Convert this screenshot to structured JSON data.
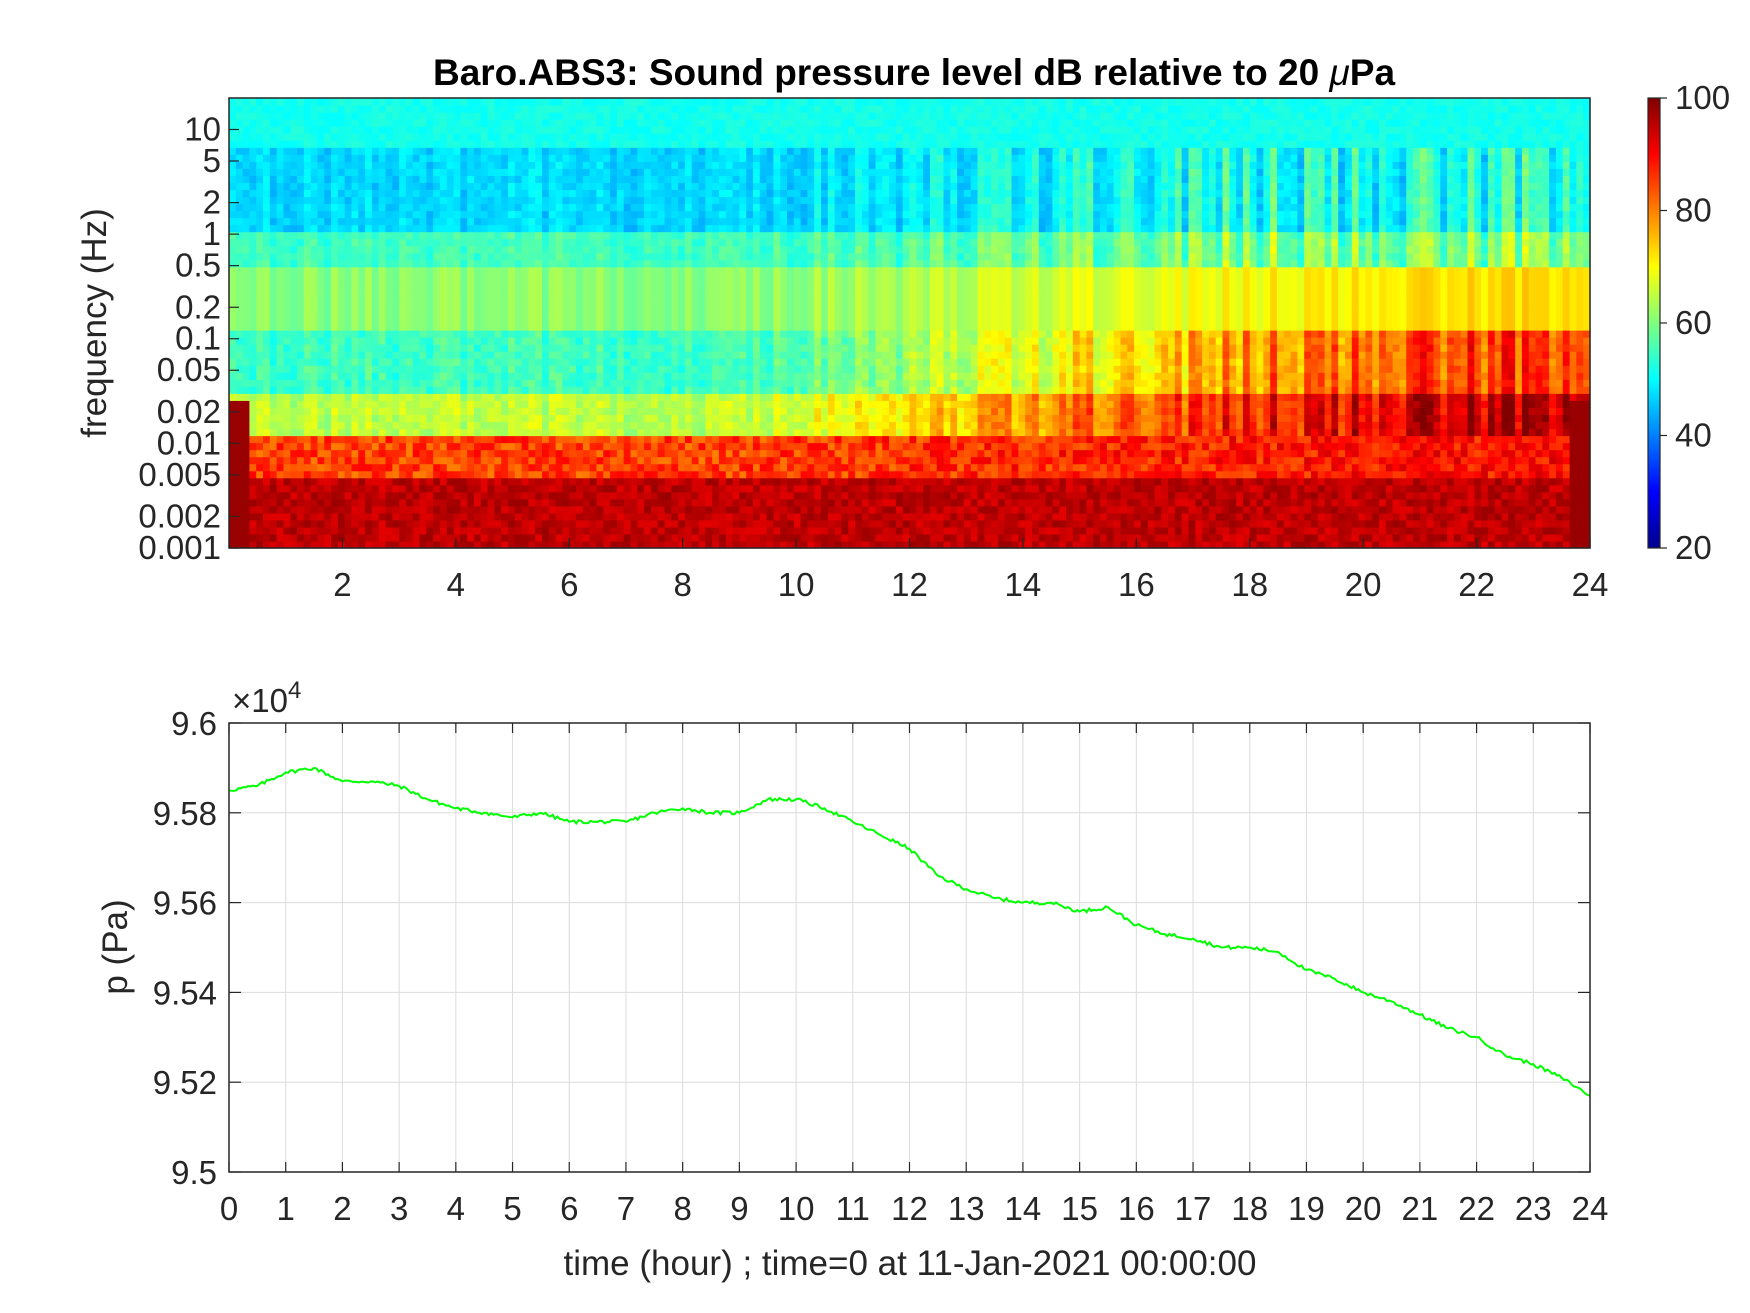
{
  "chart_data": [
    {
      "type": "heatmap",
      "title": "Baro.ABS3: Sound pressure level dB relative to 20 μPa",
      "title_parts": {
        "prefix": "Baro.ABS3: Sound pressure level dB relative to 20 ",
        "mu": "μ",
        "suffix": "Pa"
      },
      "ylabel": "frequency (Hz)",
      "xlabel": "",
      "y_scale": "log",
      "xlim": [
        0,
        24
      ],
      "ylim": [
        0.001,
        20
      ],
      "x_ticks": [
        "2",
        "4",
        "6",
        "8",
        "10",
        "12",
        "14",
        "16",
        "18",
        "20",
        "22",
        "24"
      ],
      "y_ticks": [
        "0.001",
        "0.002",
        "0.005",
        "0.01",
        "0.02",
        "0.05",
        "0.1",
        "0.2",
        "0.5",
        "1",
        "2",
        "5",
        "10"
      ],
      "colormap": "jet",
      "colorbar": {
        "range": [
          20,
          100
        ],
        "ticks": [
          "20",
          "40",
          "60",
          "80",
          "100"
        ]
      },
      "description_values": {
        "low_freq_band_level_db": 92,
        "high_freq_band_level_db": 50,
        "mid_band_level_db_early": 50,
        "mid_band_level_db_late": 75
      }
    },
    {
      "type": "line",
      "title": "",
      "xlabel": "time (hour) ; time=0 at 11-Jan-2021 00:00:00",
      "ylabel": "p (Pa)",
      "exponent_label": {
        "prefix": "×10",
        "power": "4"
      },
      "xlim": [
        0,
        24
      ],
      "ylim": [
        9.5,
        9.6
      ],
      "y_multiplier": 10000,
      "grid": true,
      "line_color": "#00ff00",
      "x_ticks": [
        "0",
        "1",
        "2",
        "3",
        "4",
        "5",
        "6",
        "7",
        "8",
        "9",
        "10",
        "11",
        "12",
        "13",
        "14",
        "15",
        "16",
        "17",
        "18",
        "19",
        "20",
        "21",
        "22",
        "23",
        "24"
      ],
      "y_ticks": [
        "9.5",
        "9.52",
        "9.54",
        "9.56",
        "9.58",
        "9.6"
      ],
      "series": [
        {
          "x": [
            0,
            0.5,
            1,
            1.5,
            2,
            2.5,
            3,
            3.5,
            4,
            4.5,
            5,
            5.5,
            6,
            6.5,
            7,
            7.5,
            8,
            8.5,
            9,
            9.5,
            10,
            10.5,
            11,
            11.5,
            12,
            12.5,
            13,
            13.5,
            14,
            14.5,
            15,
            15.5,
            16,
            16.5,
            17,
            17.5,
            18,
            18.5,
            19,
            19.5,
            20,
            20.5,
            21,
            21.5,
            22,
            22.5,
            23,
            23.5,
            24
          ],
          "y": [
            9.585,
            9.586,
            9.589,
            9.59,
            9.587,
            9.587,
            9.586,
            9.583,
            9.581,
            9.58,
            9.579,
            9.58,
            9.578,
            9.578,
            9.578,
            9.58,
            9.581,
            9.58,
            9.58,
            9.583,
            9.583,
            9.581,
            9.578,
            9.575,
            9.572,
            9.566,
            9.563,
            9.561,
            9.56,
            9.56,
            9.558,
            9.559,
            9.555,
            9.553,
            9.552,
            9.55,
            9.55,
            9.549,
            9.545,
            9.543,
            9.54,
            9.538,
            9.535,
            9.532,
            9.53,
            9.526,
            9.524,
            9.521,
            9.517
          ]
        }
      ]
    }
  ]
}
